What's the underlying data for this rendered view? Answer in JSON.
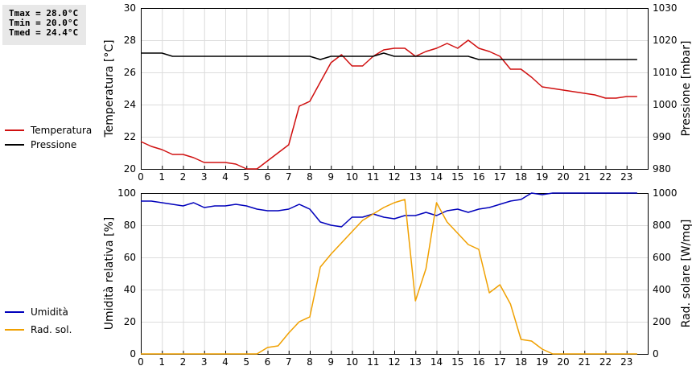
{
  "stats": {
    "tmax": "Tmax = 28.0°C",
    "tmin": "Tmin = 20.0°C",
    "tmed": "Tmed = 24.4°C"
  },
  "chart_data": [
    {
      "type": "line",
      "x_label_ticks": [
        "0",
        "1",
        "2",
        "3",
        "4",
        "5",
        "6",
        "7",
        "8",
        "9",
        "10",
        "11",
        "12",
        "13",
        "14",
        "15",
        "16",
        "17",
        "18",
        "19",
        "20",
        "21",
        "22",
        "23"
      ],
      "xlim": [
        0,
        24
      ],
      "ylabel_left": "Temperatura [°C]",
      "ylabel_right": "Pressione [mbar]",
      "ylim_left": [
        20,
        30
      ],
      "ylim_right": [
        980,
        1030
      ],
      "yticks_left": [
        "20",
        "22",
        "24",
        "26",
        "28",
        "30"
      ],
      "yticks_right": [
        "980",
        "990",
        "1000",
        "1010",
        "1020",
        "1030"
      ],
      "grid": true,
      "series": [
        {
          "name": "Temperatura",
          "axis": "left",
          "color": "#d01010",
          "x": [
            0,
            0.5,
            1,
            1.5,
            2,
            2.5,
            3,
            3.5,
            4,
            4.5,
            5,
            5.5,
            6,
            6.5,
            7,
            7.5,
            8,
            8.5,
            9,
            9.5,
            10,
            10.5,
            11,
            11.5,
            12,
            12.5,
            13,
            13.5,
            14,
            14.5,
            15,
            15.5,
            16,
            16.5,
            17,
            17.5,
            18,
            18.5,
            19,
            19.5,
            20,
            20.5,
            21,
            21.5,
            22,
            22.5,
            23,
            23.5
          ],
          "values": [
            21.7,
            21.4,
            21.2,
            20.9,
            20.9,
            20.7,
            20.4,
            20.4,
            20.4,
            20.3,
            20.0,
            20.0,
            20.5,
            21.0,
            21.5,
            23.9,
            24.2,
            25.4,
            26.6,
            27.1,
            26.4,
            26.4,
            27.0,
            27.4,
            27.5,
            27.5,
            27.0,
            27.3,
            27.5,
            27.8,
            27.5,
            28.0,
            27.5,
            27.3,
            27.0,
            26.2,
            26.2,
            25.7,
            25.1,
            25.0,
            24.9,
            24.8,
            24.7,
            24.6,
            24.4,
            24.4,
            24.5,
            24.5
          ]
        },
        {
          "name": "Pressione",
          "axis": "right",
          "color": "#000000",
          "x": [
            0,
            0.5,
            1,
            1.5,
            2,
            2.5,
            3,
            3.5,
            4,
            4.5,
            5,
            5.5,
            6,
            6.5,
            7,
            7.5,
            8,
            8.5,
            9,
            9.5,
            10,
            10.5,
            11,
            11.5,
            12,
            12.5,
            13,
            13.5,
            14,
            14.5,
            15,
            15.5,
            16,
            16.5,
            17,
            17.5,
            18,
            18.5,
            19,
            19.5,
            20,
            20.5,
            21,
            21.5,
            22,
            22.5,
            23,
            23.5
          ],
          "values": [
            1016,
            1016,
            1016,
            1015,
            1015,
            1015,
            1015,
            1015,
            1015,
            1015,
            1015,
            1015,
            1015,
            1015,
            1015,
            1015,
            1015,
            1014,
            1015,
            1015,
            1015,
            1015,
            1015,
            1016,
            1015,
            1015,
            1015,
            1015,
            1015,
            1015,
            1015,
            1015,
            1014,
            1014,
            1014,
            1014,
            1014,
            1014,
            1014,
            1014,
            1014,
            1014,
            1014,
            1014,
            1014,
            1014,
            1014,
            1014
          ]
        }
      ]
    },
    {
      "type": "line",
      "x_label_ticks": [
        "0",
        "1",
        "2",
        "3",
        "4",
        "5",
        "6",
        "7",
        "8",
        "9",
        "10",
        "11",
        "12",
        "13",
        "14",
        "15",
        "16",
        "17",
        "18",
        "19",
        "20",
        "21",
        "22",
        "23"
      ],
      "xlim": [
        0,
        24
      ],
      "ylabel_left": "Umidità relativa [%]",
      "ylabel_right": "Rad. solare [W/mq]",
      "ylim_left": [
        0,
        100
      ],
      "ylim_right": [
        0,
        1000
      ],
      "yticks_left": [
        "0",
        "20",
        "40",
        "60",
        "80",
        "100"
      ],
      "yticks_right": [
        "0",
        "200",
        "400",
        "600",
        "800",
        "1000"
      ],
      "grid": true,
      "series": [
        {
          "name": "Umidità",
          "axis": "left",
          "color": "#0000bb",
          "x": [
            0,
            0.5,
            1,
            1.5,
            2,
            2.5,
            3,
            3.5,
            4,
            4.5,
            5,
            5.5,
            6,
            6.5,
            7,
            7.5,
            8,
            8.5,
            9,
            9.5,
            10,
            10.5,
            11,
            11.5,
            12,
            12.5,
            13,
            13.5,
            14,
            14.5,
            15,
            15.5,
            16,
            16.5,
            17,
            17.5,
            18,
            18.5,
            19,
            19.5,
            20,
            21,
            22,
            23,
            23.5
          ],
          "values": [
            95,
            95,
            94,
            93,
            92,
            94,
            91,
            92,
            92,
            93,
            92,
            90,
            89,
            89,
            90,
            93,
            90,
            82,
            80,
            79,
            85,
            85,
            87,
            85,
            84,
            86,
            86,
            88,
            86,
            89,
            90,
            88,
            90,
            91,
            93,
            95,
            96,
            100,
            99,
            100,
            100,
            100,
            100,
            100,
            100
          ]
        },
        {
          "name": "Rad. sol.",
          "axis": "right",
          "color": "#f0a000",
          "x": [
            0,
            1,
            2,
            3,
            4,
            5,
            5.5,
            6,
            6.5,
            7,
            7.5,
            8,
            8.5,
            9,
            9.5,
            10,
            10.5,
            11,
            11.5,
            12,
            12.5,
            13,
            13.5,
            14,
            14.5,
            15,
            15.5,
            16,
            16.5,
            17,
            17.5,
            18,
            18.5,
            19,
            19.5,
            20,
            21,
            22,
            23,
            23.5
          ],
          "values": [
            0,
            0,
            0,
            0,
            0,
            0,
            0,
            40,
            50,
            130,
            200,
            230,
            540,
            620,
            690,
            760,
            830,
            870,
            910,
            940,
            960,
            330,
            530,
            940,
            820,
            750,
            680,
            650,
            380,
            430,
            310,
            90,
            80,
            30,
            0,
            0,
            0,
            0,
            0,
            0
          ]
        }
      ]
    }
  ]
}
